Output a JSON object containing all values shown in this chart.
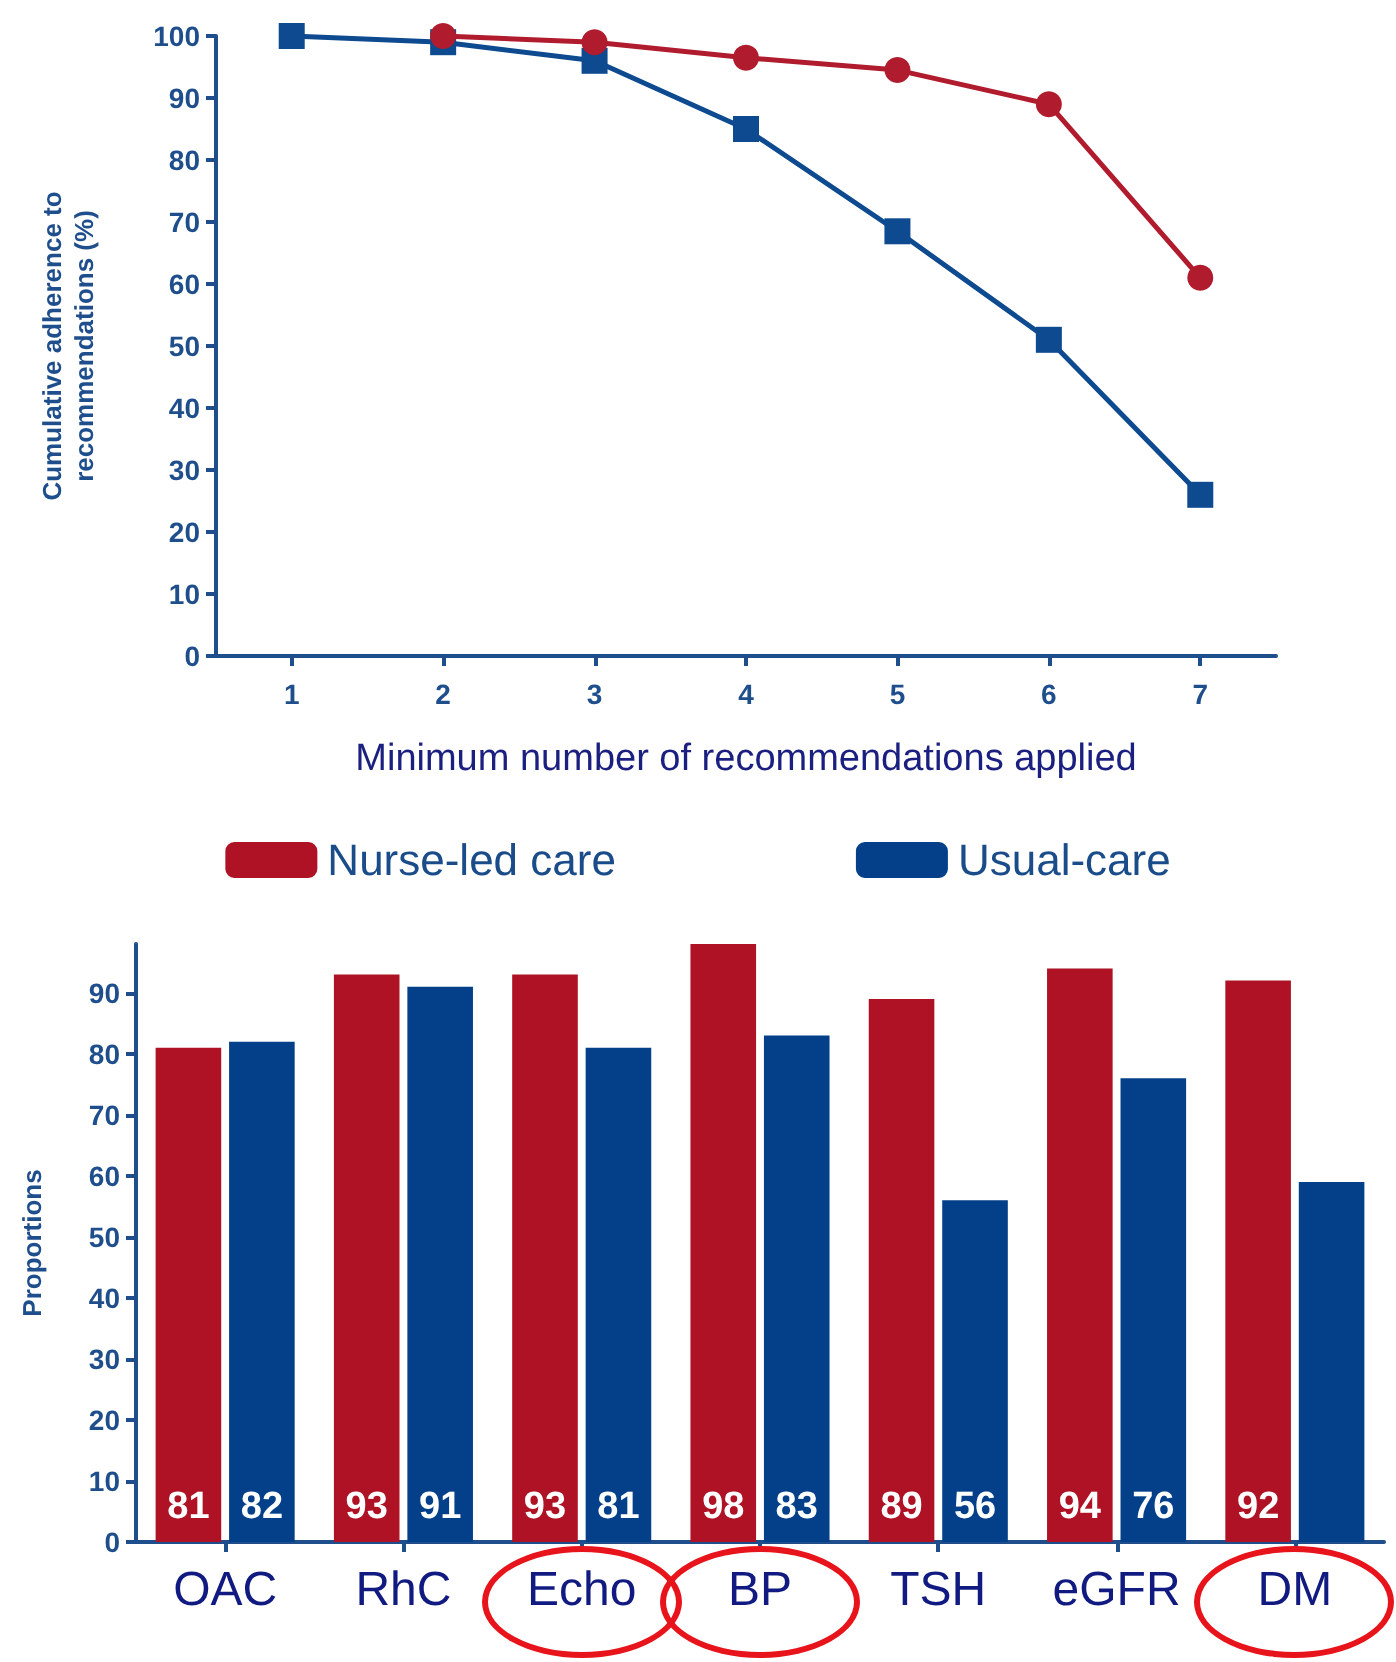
{
  "chart_data": [
    {
      "type": "line",
      "xlabel": "Minimum number of recommendations applied",
      "ylabel": "Cumulative adherence to\nrecommendations (%)",
      "categories": [
        "1",
        "2",
        "3",
        "4",
        "5",
        "6",
        "7"
      ],
      "ylim": [
        0,
        100
      ],
      "yticks": [
        0,
        10,
        20,
        30,
        40,
        50,
        60,
        70,
        80,
        90,
        100
      ],
      "grid": false,
      "legend": false,
      "series": [
        {
          "color": "#b01c2e",
          "marker": "circle",
          "values": [
            null,
            100,
            99,
            96.5,
            94.5,
            89,
            61
          ]
        },
        {
          "color": "#0d4a8f",
          "marker": "square",
          "values": [
            100,
            99,
            96,
            85,
            68.5,
            51,
            26
          ]
        }
      ]
    },
    {
      "type": "bar",
      "ylabel": "Proportions",
      "categories": [
        "OAC",
        "RhC",
        "Echo",
        "BP",
        "TSH",
        "eGFR",
        "DM"
      ],
      "ylim": [
        0,
        98
      ],
      "yticks": [
        0,
        10,
        20,
        30,
        40,
        50,
        60,
        70,
        80,
        90
      ],
      "grid": false,
      "legend": "top",
      "series": [
        {
          "name": "Nurse-led care",
          "color": "#ae1224",
          "values": [
            81,
            93,
            93,
            98,
            89,
            94,
            92
          ],
          "value_labels": [
            "81",
            "93",
            "93",
            "98",
            "89",
            "94",
            "92"
          ]
        },
        {
          "name": "Usual-care",
          "color": "#034089",
          "values": [
            82,
            91,
            81,
            83,
            56,
            76,
            59
          ],
          "value_labels": [
            "82",
            "91",
            "81",
            "83",
            "56",
            "76",
            null
          ]
        }
      ]
    }
  ]
}
